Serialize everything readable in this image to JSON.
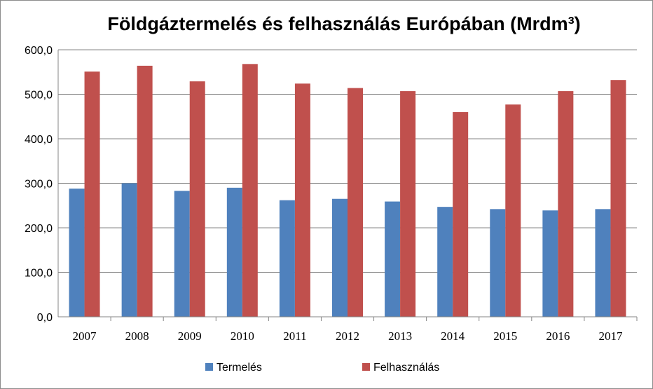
{
  "chart_data": {
    "type": "bar",
    "title": "Földgáztermelés és felhasználás Európában (Mrdm³)",
    "categories": [
      "2007",
      "2008",
      "2009",
      "2010",
      "2011",
      "2012",
      "2013",
      "2014",
      "2015",
      "2016",
      "2017"
    ],
    "series": [
      {
        "name": "Termelés",
        "color": "#4f81bd",
        "values": [
          288,
          300,
          283,
          290,
          262,
          265,
          259,
          247,
          242,
          239,
          242
        ]
      },
      {
        "name": "Felhasználás",
        "color": "#c0504d",
        "values": [
          551,
          564,
          529,
          568,
          524,
          514,
          507,
          460,
          477,
          507,
          532
        ]
      }
    ],
    "ylim": [
      0,
      600
    ],
    "yticks": [
      "0,0",
      "100,0",
      "200,0",
      "300,0",
      "400,0",
      "500,0",
      "600,0"
    ],
    "grid": true,
    "legend_position": "bottom"
  }
}
